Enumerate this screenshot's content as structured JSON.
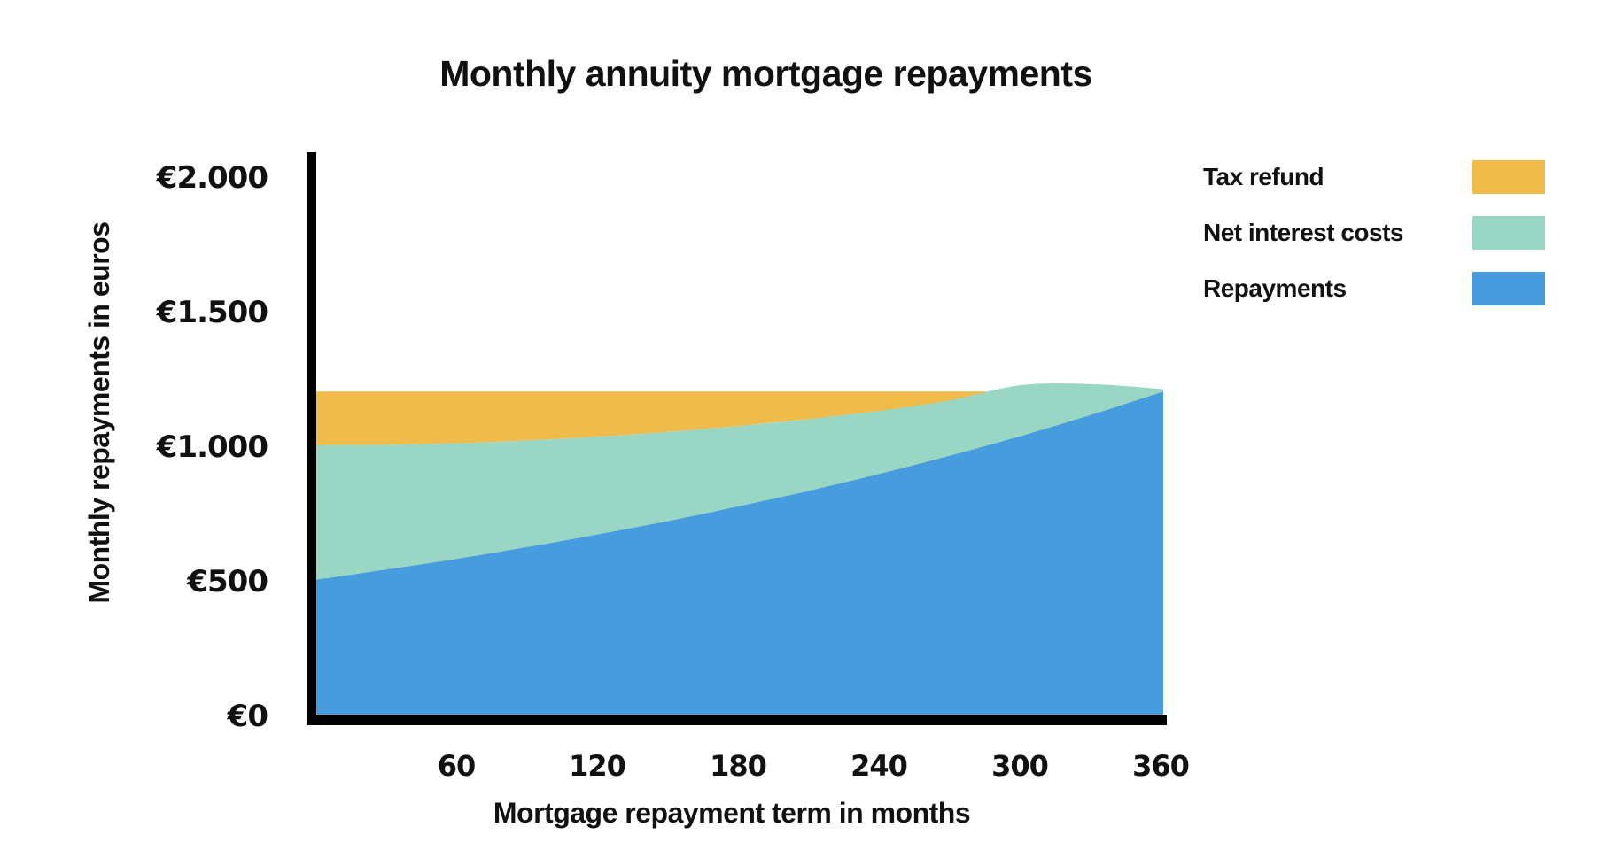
{
  "title": "Monthly annuity mortgage repayments",
  "y_axis": {
    "title": "Monthly repayments in euros",
    "ticks": [
      {
        "label": "€2.000",
        "value": 2000
      },
      {
        "label": "€1.500",
        "value": 1500
      },
      {
        "label": "€1.000",
        "value": 1000
      },
      {
        "label": "€500",
        "value": 500
      },
      {
        "label": "€0",
        "value": 0
      }
    ]
  },
  "x_axis": {
    "title": "Mortgage repayment term in months",
    "ticks": [
      {
        "label": "60",
        "value": 60
      },
      {
        "label": "120",
        "value": 120
      },
      {
        "label": "180",
        "value": 180
      },
      {
        "label": "240",
        "value": 240
      },
      {
        "label": "300",
        "value": 300
      },
      {
        "label": "360",
        "value": 360
      }
    ]
  },
  "legend": [
    {
      "label": "Tax refund",
      "color": "#EFBB4B"
    },
    {
      "label": "Net interest costs",
      "color": "#9AD6C4"
    },
    {
      "label": "Repayments",
      "color": "#469CDC"
    }
  ],
  "colors": {
    "tax_refund": "#EFBB4B",
    "net_interest": "#9AD6C4",
    "repayments": "#469CDC",
    "axis": "#000000",
    "text": "#111111",
    "background": "#ffffff"
  },
  "chart_data": {
    "type": "area",
    "stacked": true,
    "title": "Monthly annuity mortgage repayments",
    "xlabel": "Mortgage repayment term in months",
    "ylabel": "Monthly repayments in euros",
    "xlim": [
      0,
      360
    ],
    "ylim": [
      0,
      2000
    ],
    "grid": false,
    "legend_position": "top-right",
    "total_monthly_payment_eur": 1200,
    "x_months": [
      0,
      30,
      60,
      90,
      120,
      150,
      180,
      210,
      240,
      270,
      300,
      330,
      360
    ],
    "series": [
      {
        "name": "Repayments",
        "color": "#469CDC",
        "values": [
          500,
          538,
          578,
          622,
          669,
          719,
          774,
          832,
          895,
          963,
          1036,
          1115,
          1200
        ]
      },
      {
        "name": "Net interest costs",
        "color": "#9AD6C4",
        "values": [
          500,
          464,
          430,
          396,
          363,
          331,
          298,
          266,
          233,
          199,
          164,
          85,
          0
        ]
      },
      {
        "name": "Tax refund",
        "color": "#EFBB4B",
        "values": [
          200,
          198,
          192,
          182,
          168,
          150,
          128,
          102,
          72,
          38,
          0,
          0,
          0
        ]
      }
    ]
  }
}
